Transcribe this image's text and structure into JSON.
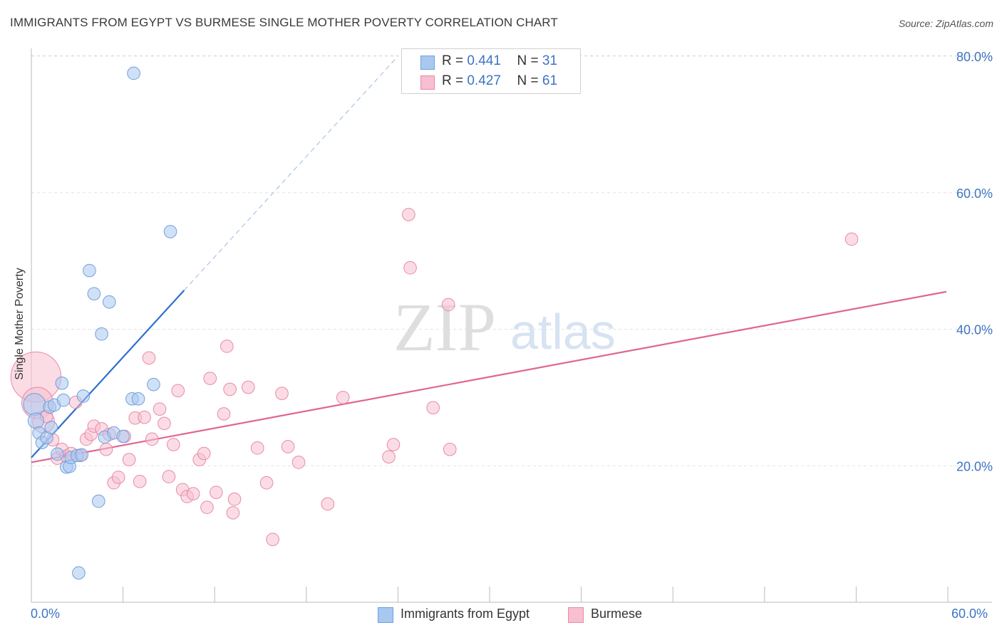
{
  "chart_data": {
    "type": "scatter",
    "title": "IMMIGRANTS FROM EGYPT VS BURMESE SINGLE MOTHER POVERTY CORRELATION CHART",
    "source": "Source: ZipAtlas.com",
    "ylabel": "Single Mother Poverty",
    "xlabel": "",
    "xlim": [
      0,
      60
    ],
    "ylim": [
      0,
      82
    ],
    "y_ticks": [
      20,
      40,
      60,
      80
    ],
    "y_tick_labels": [
      "20.0%",
      "40.0%",
      "60.0%",
      "80.0%"
    ],
    "x_tick_labels": [
      "0.0%",
      "60.0%"
    ],
    "watermark": "ZIPatlas",
    "legend": [
      {
        "r_label": "R =",
        "r": "0.441",
        "n_label": "N =",
        "n": "31"
      },
      {
        "r_label": "R =",
        "r": "0.427",
        "n_label": "N =",
        "n": "61"
      }
    ],
    "series": [
      {
        "name": "Immigrants from Egypt",
        "color": "#a9c8f0",
        "stroke": "#6f9fdc",
        "line_color": "#2d6fcf",
        "trend": {
          "x0": 0,
          "y0": 21.2,
          "x1": 10,
          "y1": 45.7,
          "x_dash_end": 23.9
        },
        "points": [
          [
            0.2,
            29.0,
            7
          ],
          [
            0.3,
            26.6,
            5
          ],
          [
            0.5,
            24.8,
            4
          ],
          [
            0.7,
            23.4,
            4
          ],
          [
            1.0,
            24.1,
            4
          ],
          [
            1.2,
            28.6,
            4
          ],
          [
            1.3,
            25.6,
            4
          ],
          [
            1.5,
            28.9,
            4
          ],
          [
            1.7,
            21.7,
            4
          ],
          [
            2.0,
            32.1,
            4
          ],
          [
            2.1,
            29.6,
            4
          ],
          [
            2.3,
            19.8,
            4
          ],
          [
            2.5,
            19.9,
            4
          ],
          [
            2.6,
            21.2,
            4
          ],
          [
            3.0,
            21.5,
            4
          ],
          [
            3.3,
            21.6,
            4
          ],
          [
            3.4,
            30.2,
            4
          ],
          [
            3.8,
            48.6,
            4
          ],
          [
            4.1,
            45.2,
            4
          ],
          [
            4.4,
            14.8,
            4
          ],
          [
            4.6,
            39.3,
            4
          ],
          [
            4.8,
            24.2,
            4
          ],
          [
            5.1,
            44.0,
            4
          ],
          [
            5.4,
            24.8,
            4
          ],
          [
            6.0,
            24.3,
            4
          ],
          [
            6.6,
            29.8,
            4
          ],
          [
            7.0,
            29.8,
            4
          ],
          [
            8.0,
            31.9,
            4
          ],
          [
            9.1,
            54.3,
            4
          ],
          [
            6.7,
            77.5,
            4
          ],
          [
            3.1,
            4.3,
            4
          ]
        ]
      },
      {
        "name": "Burmese",
        "color": "#f7bfd0",
        "stroke": "#e88aa8",
        "line_color": "#e06590",
        "trend": {
          "x0": 0,
          "y0": 20.5,
          "x1": 59.9,
          "y1": 45.5
        },
        "points": [
          [
            0.3,
            33.0,
            16
          ],
          [
            0.4,
            29.2,
            10
          ],
          [
            0.8,
            26.4,
            7
          ],
          [
            1.0,
            27.2,
            4
          ],
          [
            1.4,
            23.8,
            4
          ],
          [
            1.7,
            21.1,
            4
          ],
          [
            2.0,
            22.4,
            4
          ],
          [
            2.3,
            21.4,
            4
          ],
          [
            2.6,
            21.8,
            4
          ],
          [
            2.9,
            29.3,
            4
          ],
          [
            3.2,
            21.5,
            4
          ],
          [
            3.6,
            23.9,
            4
          ],
          [
            3.9,
            24.6,
            4
          ],
          [
            4.1,
            25.8,
            4
          ],
          [
            4.6,
            25.4,
            4
          ],
          [
            4.9,
            22.4,
            4
          ],
          [
            5.1,
            24.6,
            4
          ],
          [
            5.4,
            17.5,
            4
          ],
          [
            5.7,
            18.3,
            4
          ],
          [
            6.1,
            24.3,
            4
          ],
          [
            6.4,
            20.9,
            4
          ],
          [
            6.8,
            27.0,
            4
          ],
          [
            7.1,
            17.7,
            4
          ],
          [
            7.4,
            27.1,
            4
          ],
          [
            7.7,
            35.8,
            4
          ],
          [
            7.9,
            23.9,
            4
          ],
          [
            8.4,
            28.3,
            4
          ],
          [
            8.7,
            26.2,
            4
          ],
          [
            9.0,
            18.4,
            4
          ],
          [
            9.3,
            23.1,
            4
          ],
          [
            9.6,
            31.0,
            4
          ],
          [
            9.9,
            16.5,
            4
          ],
          [
            10.2,
            15.5,
            4
          ],
          [
            10.6,
            15.9,
            4
          ],
          [
            11.0,
            20.9,
            4
          ],
          [
            11.3,
            21.8,
            4
          ],
          [
            11.5,
            13.9,
            4
          ],
          [
            11.7,
            32.8,
            4
          ],
          [
            12.1,
            16.1,
            4
          ],
          [
            12.6,
            27.6,
            4
          ],
          [
            12.8,
            37.5,
            4
          ],
          [
            13.0,
            31.2,
            4
          ],
          [
            13.2,
            13.1,
            4
          ],
          [
            13.3,
            15.1,
            4
          ],
          [
            14.2,
            31.5,
            4
          ],
          [
            14.8,
            22.6,
            4
          ],
          [
            15.4,
            17.5,
            4
          ],
          [
            15.8,
            9.2,
            4
          ],
          [
            16.4,
            30.6,
            4
          ],
          [
            16.8,
            22.8,
            4
          ],
          [
            17.5,
            20.5,
            4
          ],
          [
            19.4,
            14.4,
            4
          ],
          [
            20.4,
            30.0,
            4
          ],
          [
            23.4,
            21.3,
            4
          ],
          [
            23.7,
            23.1,
            4
          ],
          [
            24.7,
            56.8,
            4
          ],
          [
            24.8,
            49.0,
            4
          ],
          [
            26.3,
            28.5,
            4
          ],
          [
            27.3,
            43.6,
            4
          ],
          [
            27.4,
            22.4,
            4
          ],
          [
            53.7,
            53.2,
            4
          ]
        ]
      }
    ]
  }
}
